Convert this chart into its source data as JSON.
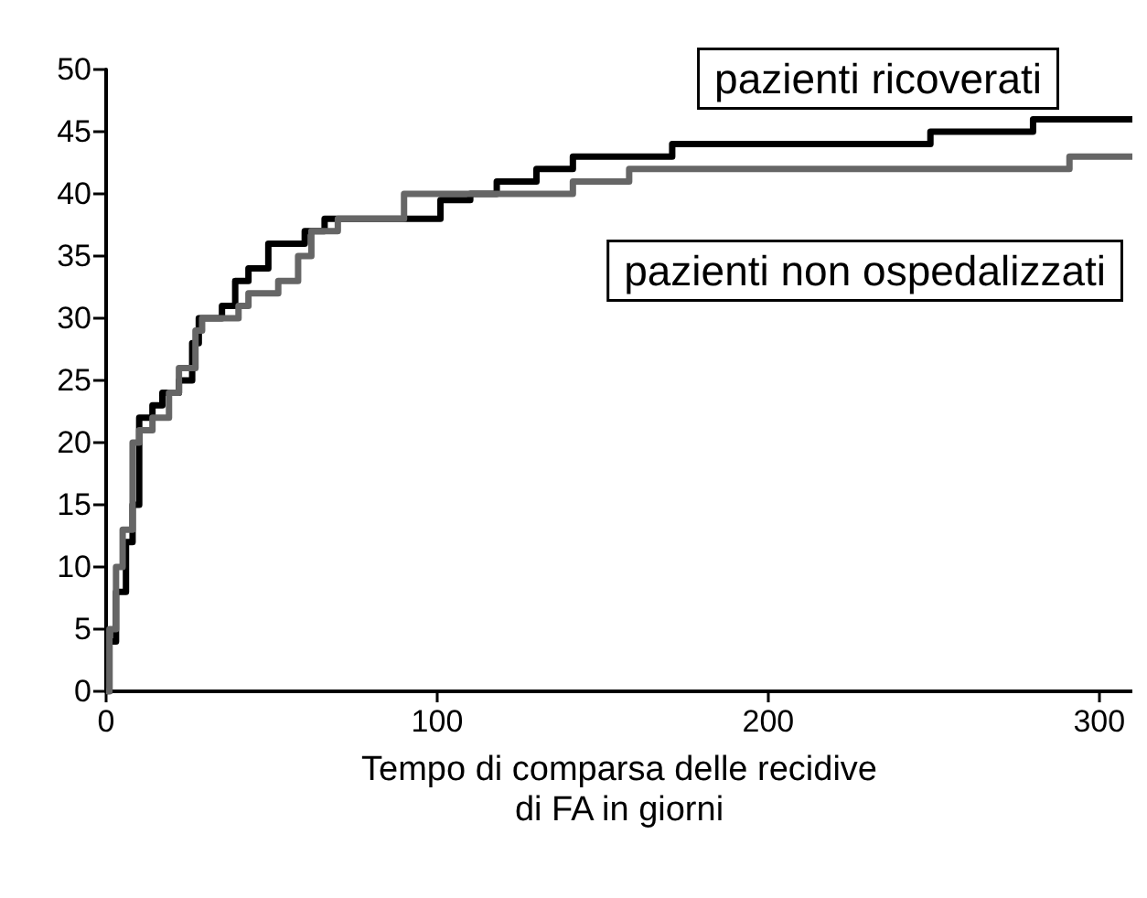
{
  "chart_data": {
    "type": "step",
    "xlabel": "Tempo di comparsa delle recidive\ndi FA in giorni",
    "xlim": [
      0,
      310
    ],
    "xticks": [
      0,
      100,
      200,
      300
    ],
    "ylim": [
      0,
      50
    ],
    "yticks": [
      0,
      5,
      10,
      15,
      20,
      25,
      30,
      35,
      40,
      45,
      50
    ],
    "grid": false,
    "legend": false,
    "marker": "none",
    "line_style": "solid",
    "series": [
      {
        "name": "pazienti ricoverati",
        "color": "#000000",
        "x": [
          0,
          1,
          3,
          6,
          8,
          10,
          14,
          17,
          22,
          26,
          28,
          35,
          39,
          43,
          49,
          60,
          66,
          101,
          110,
          118,
          130,
          141,
          171,
          249,
          280,
          310
        ],
        "values": [
          0,
          4,
          8,
          12,
          15,
          22,
          23,
          24,
          25,
          28,
          30,
          31,
          33,
          34,
          36,
          37,
          38,
          39.5,
          40,
          41,
          42,
          43,
          44,
          45,
          46,
          46
        ]
      },
      {
        "name": "pazienti non ospedalizzati",
        "color": "#666666",
        "x": [
          0,
          1,
          3,
          5,
          8,
          10,
          14,
          19,
          22,
          27,
          29,
          40,
          43,
          52,
          58,
          62,
          70,
          90,
          141,
          158,
          291,
          310
        ],
        "values": [
          0,
          5,
          10,
          13,
          20,
          21,
          22,
          24,
          26,
          29,
          30,
          31,
          32,
          33,
          35,
          37,
          38,
          40,
          41,
          42,
          43,
          43
        ]
      }
    ]
  }
}
